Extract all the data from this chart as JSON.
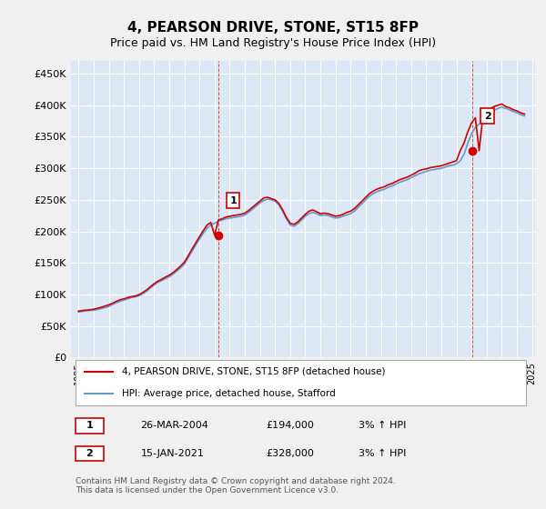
{
  "title": "4, PEARSON DRIVE, STONE, ST15 8FP",
  "subtitle": "Price paid vs. HM Land Registry's House Price Index (HPI)",
  "bg_color": "#e8f0f8",
  "plot_bg_color": "#dce8f5",
  "grid_color": "#ffffff",
  "hpi_color": "#6699cc",
  "price_color": "#cc0000",
  "marker_color": "#cc0000",
  "ylim": [
    0,
    470000
  ],
  "yticks": [
    0,
    50000,
    100000,
    150000,
    200000,
    250000,
    300000,
    350000,
    400000,
    450000
  ],
  "ytick_labels": [
    "£0",
    "£50K",
    "£100K",
    "£150K",
    "£200K",
    "£250K",
    "£300K",
    "£350K",
    "£400K",
    "£450K"
  ],
  "sale1_date": "26-MAR-2004",
  "sale1_price": 194000,
  "sale1_label": "1",
  "sale2_date": "15-JAN-2021",
  "sale2_price": 328000,
  "sale2_label": "2",
  "sale1_x": 2004.23,
  "sale2_x": 2021.04,
  "legend_line1": "4, PEARSON DRIVE, STONE, ST15 8FP (detached house)",
  "legend_line2": "HPI: Average price, detached house, Stafford",
  "footer": "Contains HM Land Registry data © Crown copyright and database right 2024.\nThis data is licensed under the Open Government Licence v3.0.",
  "table_row1": [
    "1",
    "26-MAR-2004",
    "£194,000",
    "3% ↑ HPI"
  ],
  "table_row2": [
    "2",
    "15-JAN-2021",
    "£328,000",
    "3% ↑ HPI"
  ],
  "hpi_data_x": [
    1995.0,
    1995.25,
    1995.5,
    1995.75,
    1996.0,
    1996.25,
    1996.5,
    1996.75,
    1997.0,
    1997.25,
    1997.5,
    1997.75,
    1998.0,
    1998.25,
    1998.5,
    1998.75,
    1999.0,
    1999.25,
    1999.5,
    1999.75,
    2000.0,
    2000.25,
    2000.5,
    2000.75,
    2001.0,
    2001.25,
    2001.5,
    2001.75,
    2002.0,
    2002.25,
    2002.5,
    2002.75,
    2003.0,
    2003.25,
    2003.5,
    2003.75,
    2004.0,
    2004.25,
    2004.5,
    2004.75,
    2005.0,
    2005.25,
    2005.5,
    2005.75,
    2006.0,
    2006.25,
    2006.5,
    2006.75,
    2007.0,
    2007.25,
    2007.5,
    2007.75,
    2008.0,
    2008.25,
    2008.5,
    2008.75,
    2009.0,
    2009.25,
    2009.5,
    2009.75,
    2010.0,
    2010.25,
    2010.5,
    2010.75,
    2011.0,
    2011.25,
    2011.5,
    2011.75,
    2012.0,
    2012.25,
    2012.5,
    2012.75,
    2013.0,
    2013.25,
    2013.5,
    2013.75,
    2014.0,
    2014.25,
    2014.5,
    2014.75,
    2015.0,
    2015.25,
    2015.5,
    2015.75,
    2016.0,
    2016.25,
    2016.5,
    2016.75,
    2017.0,
    2017.25,
    2017.5,
    2017.75,
    2018.0,
    2018.25,
    2018.5,
    2018.75,
    2019.0,
    2019.25,
    2019.5,
    2019.75,
    2020.0,
    2020.25,
    2020.5,
    2020.75,
    2021.0,
    2021.25,
    2021.5,
    2021.75,
    2022.0,
    2022.25,
    2022.5,
    2022.75,
    2023.0,
    2023.25,
    2023.5,
    2023.75,
    2024.0,
    2024.25,
    2024.5
  ],
  "hpi_data_y": [
    72000,
    73000,
    74000,
    74500,
    75000,
    76000,
    77500,
    79000,
    81000,
    84000,
    87000,
    89000,
    91000,
    93000,
    95000,
    96000,
    98000,
    101000,
    105000,
    110000,
    115000,
    119000,
    122000,
    125000,
    128000,
    132000,
    137000,
    142000,
    148000,
    158000,
    168000,
    178000,
    188000,
    197000,
    205000,
    210000,
    213000,
    216000,
    218000,
    220000,
    221000,
    222000,
    223000,
    224000,
    226000,
    230000,
    235000,
    240000,
    245000,
    249000,
    251000,
    250000,
    248000,
    242000,
    232000,
    220000,
    210000,
    208000,
    212000,
    218000,
    224000,
    228000,
    230000,
    228000,
    225000,
    226000,
    225000,
    223000,
    221000,
    222000,
    224000,
    226000,
    228000,
    232000,
    238000,
    244000,
    250000,
    256000,
    260000,
    263000,
    265000,
    267000,
    270000,
    272000,
    275000,
    278000,
    280000,
    282000,
    285000,
    288000,
    291000,
    293000,
    295000,
    297000,
    298000,
    299000,
    300000,
    302000,
    304000,
    305000,
    307000,
    312000,
    322000,
    340000,
    355000,
    365000,
    370000,
    375000,
    382000,
    388000,
    392000,
    395000,
    397000,
    395000,
    393000,
    390000,
    388000,
    385000,
    383000
  ],
  "price_line_x": [
    1995.0,
    1995.25,
    1995.5,
    1995.75,
    1996.0,
    1996.25,
    1996.5,
    1996.75,
    1997.0,
    1997.25,
    1997.5,
    1997.75,
    1998.0,
    1998.25,
    1998.5,
    1998.75,
    1999.0,
    1999.25,
    1999.5,
    1999.75,
    2000.0,
    2000.25,
    2000.5,
    2000.75,
    2001.0,
    2001.25,
    2001.5,
    2001.75,
    2002.0,
    2002.25,
    2002.5,
    2002.75,
    2003.0,
    2003.25,
    2003.5,
    2003.75,
    2004.0,
    2004.25,
    2004.5,
    2004.75,
    2005.0,
    2005.25,
    2005.5,
    2005.75,
    2006.0,
    2006.25,
    2006.5,
    2006.75,
    2007.0,
    2007.25,
    2007.5,
    2007.75,
    2008.0,
    2008.25,
    2008.5,
    2008.75,
    2009.0,
    2009.25,
    2009.5,
    2009.75,
    2010.0,
    2010.25,
    2010.5,
    2010.75,
    2011.0,
    2011.25,
    2011.5,
    2011.75,
    2012.0,
    2012.25,
    2012.5,
    2012.75,
    2013.0,
    2013.25,
    2013.5,
    2013.75,
    2014.0,
    2014.25,
    2014.5,
    2014.75,
    2015.0,
    2015.25,
    2015.5,
    2015.75,
    2016.0,
    2016.25,
    2016.5,
    2016.75,
    2017.0,
    2017.25,
    2017.5,
    2017.75,
    2018.0,
    2018.25,
    2018.5,
    2018.75,
    2019.0,
    2019.25,
    2019.5,
    2019.75,
    2020.0,
    2020.25,
    2020.5,
    2020.75,
    2021.0,
    2021.25,
    2021.5,
    2021.75,
    2022.0,
    2022.25,
    2022.5,
    2022.75,
    2023.0,
    2023.25,
    2023.5,
    2023.75,
    2024.0,
    2024.25,
    2024.5
  ],
  "price_line_y": [
    73500,
    74500,
    75000,
    75500,
    76500,
    78000,
    79500,
    81500,
    83500,
    86000,
    89000,
    91500,
    93000,
    95000,
    96500,
    97500,
    99500,
    103000,
    107000,
    112000,
    117000,
    121000,
    124000,
    127500,
    130500,
    134500,
    139500,
    145000,
    151000,
    161000,
    171500,
    181500,
    191500,
    201000,
    210000,
    214000,
    194000,
    218000,
    220000,
    222500,
    224000,
    225000,
    226000,
    227000,
    229000,
    233000,
    238000,
    243000,
    248000,
    253000,
    254000,
    252000,
    250000,
    244000,
    234000,
    222000,
    213000,
    211000,
    215000,
    221000,
    227000,
    232000,
    234000,
    231000,
    228000,
    229000,
    228000,
    226000,
    224000,
    225000,
    227000,
    230000,
    232000,
    236000,
    242000,
    248000,
    254000,
    260000,
    264000,
    267000,
    269000,
    271000,
    274000,
    276000,
    279000,
    282000,
    284000,
    286000,
    289000,
    292000,
    296000,
    298000,
    299000,
    301000,
    302000,
    303000,
    304000,
    306000,
    308000,
    310000,
    312000,
    328000,
    340000,
    358000,
    372000,
    380000,
    328000,
    383000,
    390000,
    395000,
    398000,
    400000,
    402000,
    398000,
    396000,
    393000,
    391000,
    388000,
    386000
  ]
}
